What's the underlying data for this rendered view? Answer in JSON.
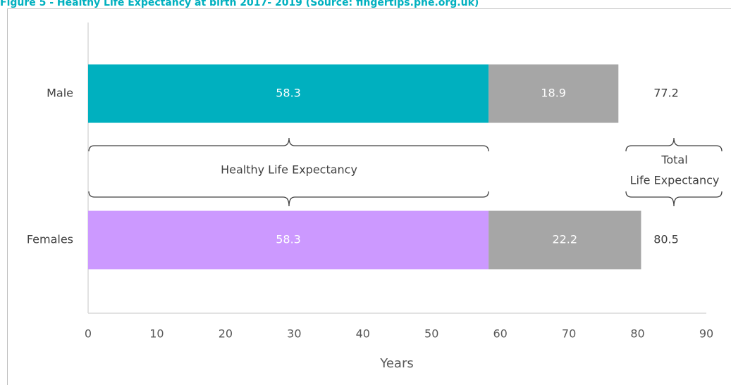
{
  "chart_data": {
    "type": "stacked_barh",
    "title": "Figure 5 - Healthy Life Expectancy at birth 2017- 2019 (Source: fingertips.phe.org.uk)",
    "categories": [
      "Male",
      "Females"
    ],
    "series": [
      {
        "colors": [
          "#00b0bf",
          "#cc99ff"
        ],
        "values": [
          58.3,
          58.3
        ]
      },
      {
        "color": "#a6a6a6",
        "values": [
          18.9,
          22.2
        ]
      }
    ],
    "totals": [
      77.2,
      80.5
    ],
    "annotations": [
      "Healthy Life Expectancy",
      "Total",
      "Life Expectancy"
    ],
    "xlabel": "Years",
    "xlim": [
      0,
      90
    ],
    "xticks": [
      0,
      10,
      20,
      30,
      40,
      50,
      60,
      70,
      80,
      90
    ]
  }
}
